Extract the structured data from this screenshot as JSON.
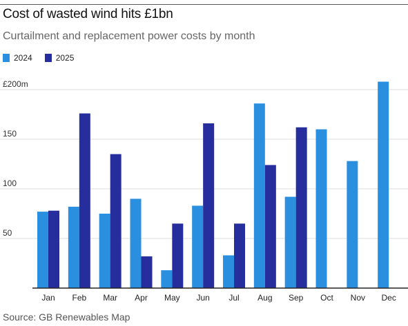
{
  "title": "Cost of wasted wind hits £1bn",
  "subtitle": "Curtailment and replacement power costs by month",
  "source": "Source: GB Renewables Map",
  "colors": {
    "2024": "#2b8fe0",
    "2025": "#262d9c",
    "grid": "#dddddd",
    "axis": "#222222"
  },
  "chart_data": {
    "type": "bar",
    "title": "Cost of wasted wind hits £1bn",
    "subtitle": "Curtailment and replacement power costs by month",
    "categories": [
      "Jan",
      "Feb",
      "Mar",
      "Apr",
      "May",
      "Jun",
      "Jul",
      "Aug",
      "Sep",
      "Oct",
      "Nov",
      "Dec"
    ],
    "series": [
      {
        "name": "2024",
        "values": [
          77,
          82,
          75,
          90,
          18,
          83,
          33,
          186,
          92,
          160,
          128,
          208
        ]
      },
      {
        "name": "2025",
        "values": [
          78,
          176,
          135,
          32,
          65,
          166,
          65,
          124,
          162,
          null,
          null,
          null
        ]
      }
    ],
    "yticks": [
      {
        "value": 50,
        "label": "50"
      },
      {
        "value": 100,
        "label": "100"
      },
      {
        "value": 150,
        "label": "150"
      },
      {
        "value": 200,
        "label": "£200m"
      }
    ],
    "ylim": [
      0,
      210
    ],
    "xlabel": "",
    "ylabel": "",
    "grid": true,
    "legend": "top-left"
  }
}
